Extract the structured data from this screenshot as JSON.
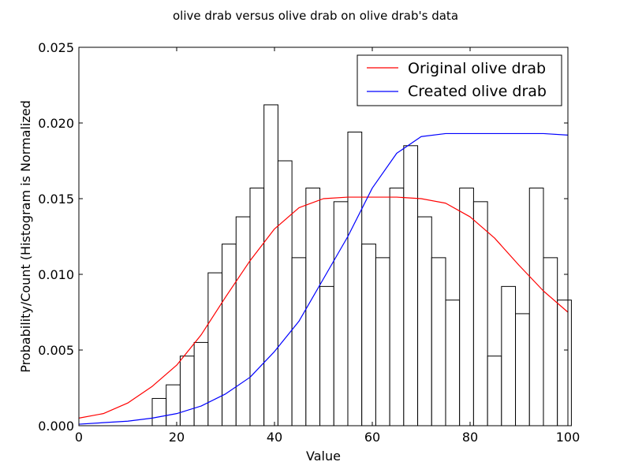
{
  "chart_data": {
    "type": "histogram+line",
    "title": "olive drab versus olive drab on olive drab's data",
    "xlabel": "Value",
    "ylabel": "Probability/Count (Histogram is Normalized",
    "xlim": [
      0,
      100
    ],
    "ylim": [
      0,
      0.025
    ],
    "x_ticks": [
      0,
      20,
      40,
      60,
      80,
      100
    ],
    "x_tick_labels": [
      "0",
      "20",
      "40",
      "60",
      "80",
      "100"
    ],
    "y_ticks": [
      0,
      0.005,
      0.01,
      0.015,
      0.02,
      0.025
    ],
    "y_tick_labels": [
      "0.000",
      "0.005",
      "0.010",
      "0.015",
      "0.020",
      "0.025"
    ],
    "grid": false,
    "legend_position": "top-right",
    "histogram": {
      "bin_start": 15,
      "bin_width": 2.857,
      "values": [
        0.0018,
        0.0027,
        0.0046,
        0.0055,
        0.0101,
        0.012,
        0.0138,
        0.0157,
        0.0212,
        0.0175,
        0.0111,
        0.0157,
        0.0092,
        0.0148,
        0.0194,
        0.012,
        0.0111,
        0.0157,
        0.0185,
        0.0138,
        0.0111,
        0.0083,
        0.0157,
        0.0148,
        0.0046,
        0.0092,
        0.0074,
        0.0157,
        0.0111,
        0.0083
      ]
    },
    "series": [
      {
        "name": "Original olive drab",
        "color": "#ff0000",
        "x": [
          0,
          5,
          10,
          15,
          20,
          25,
          30,
          35,
          40,
          45,
          50,
          55,
          60,
          65,
          70,
          75,
          80,
          85,
          90,
          95,
          100
        ],
        "values": [
          0.0005,
          0.0008,
          0.0015,
          0.0026,
          0.004,
          0.006,
          0.0085,
          0.0109,
          0.013,
          0.0144,
          0.015,
          0.0151,
          0.0151,
          0.0151,
          0.015,
          0.0147,
          0.0138,
          0.0124,
          0.0106,
          0.0089,
          0.0075
        ]
      },
      {
        "name": "Created olive drab",
        "color": "#0000ff",
        "x": [
          0,
          5,
          10,
          15,
          20,
          25,
          30,
          35,
          40,
          45,
          50,
          55,
          60,
          65,
          70,
          75,
          80,
          85,
          90,
          95,
          100
        ],
        "values": [
          0.0001,
          0.0002,
          0.0003,
          0.0005,
          0.0008,
          0.0013,
          0.0021,
          0.0032,
          0.0049,
          0.0069,
          0.0097,
          0.0125,
          0.0157,
          0.018,
          0.0191,
          0.0193,
          0.0193,
          0.0193,
          0.0193,
          0.0193,
          0.0192
        ]
      }
    ]
  }
}
